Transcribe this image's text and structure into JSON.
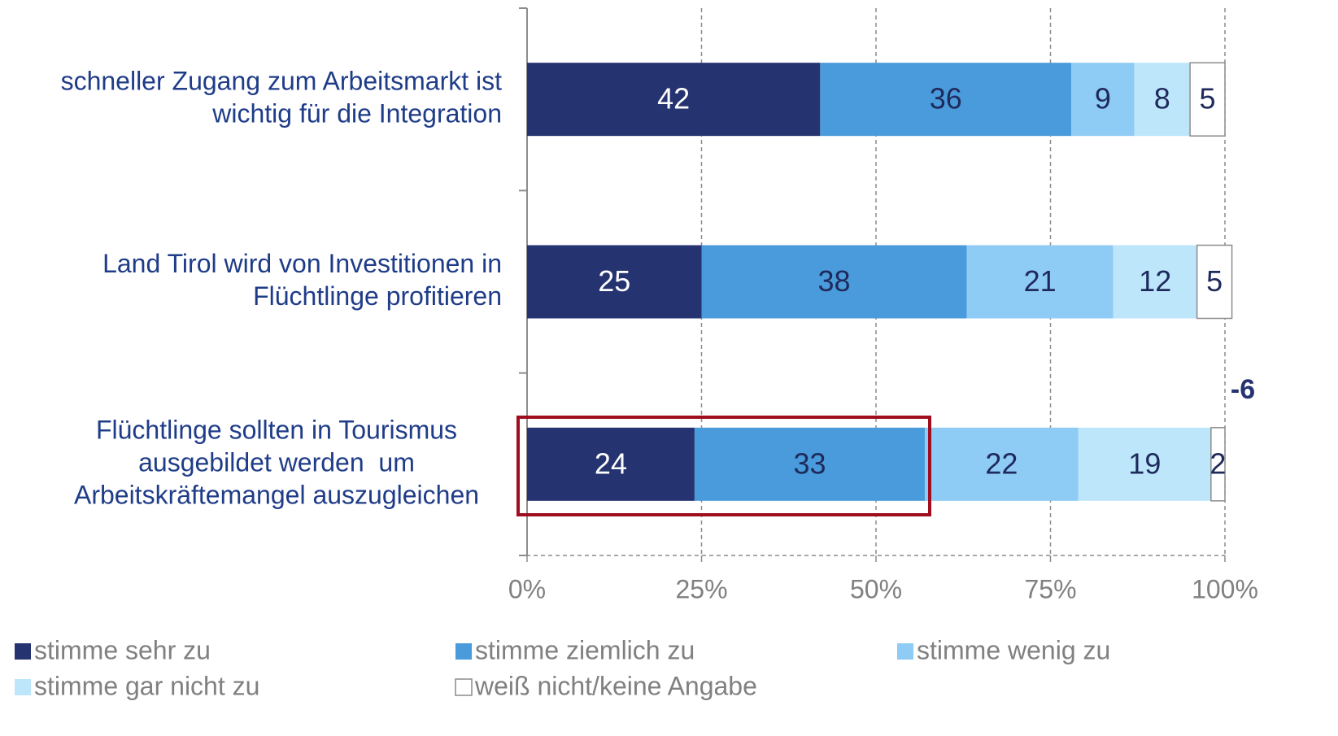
{
  "chart_data": {
    "type": "stacked_bar_horizontal",
    "categories": [
      [
        "schneller Zugang zum Arbeitsmarkt ist",
        "wichtig für die Integration"
      ],
      [
        "Land Tirol wird von Investitionen in",
        "Flüchtlinge profitieren"
      ],
      [
        "Flüchtlinge sollten in Tourismus",
        "ausgebildet werden  um",
        "Arbeitskräftemangel auszugleichen"
      ]
    ],
    "series": [
      {
        "name": "stimme sehr zu",
        "color": "#253370",
        "values": [
          42,
          25,
          24
        ]
      },
      {
        "name": "stimme ziemlich zu",
        "color": "#4a9bdb",
        "values": [
          36,
          38,
          33
        ]
      },
      {
        "name": "stimme wenig zu",
        "color": "#8ecbf5",
        "values": [
          9,
          21,
          22
        ]
      },
      {
        "name": "stimme gar nicht zu",
        "color": "#bde6fb",
        "values": [
          8,
          12,
          19
        ]
      },
      {
        "name": "weiß nicht/keine Angabe",
        "color": "#ffffff",
        "values": [
          5,
          5,
          2
        ]
      }
    ],
    "xlim": [
      0,
      100
    ],
    "xticks": [
      {
        "value": 0,
        "label": "0%"
      },
      {
        "value": 25,
        "label": "25%"
      },
      {
        "value": 50,
        "label": "50%"
      },
      {
        "value": 75,
        "label": "75%"
      },
      {
        "value": 100,
        "label": "100%"
      }
    ],
    "grid": true,
    "annotation": "-6"
  }
}
